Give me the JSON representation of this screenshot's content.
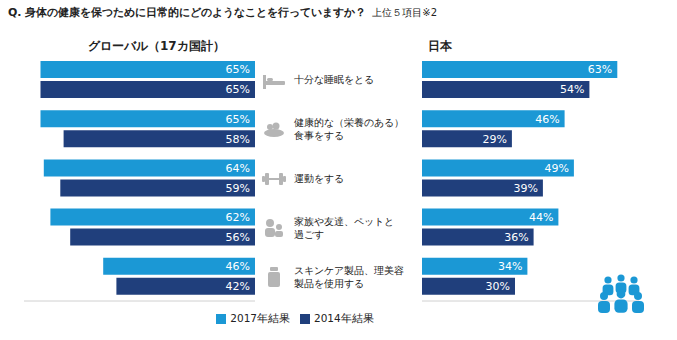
{
  "title": "Q. 身体の健康を保つために日常的にどのようなことを行っていますか？",
  "subtitle": "上位５項目※2",
  "chart_data": [
    {
      "type": "bar",
      "title": "グローバル（17カ国計）",
      "orientation": "horizontal",
      "categories": [
        "十分な睡眠をとる",
        "健康的な（栄養のある）\n食事をする",
        "運動をする",
        "家族や友達、ペットと\n過ごす",
        "スキンケア製品、理美容\n製品を使用する"
      ],
      "series": [
        {
          "name": "2017年結果",
          "color": "#1b98d5",
          "values": [
            65,
            65,
            64,
            62,
            46
          ],
          "value_labels": [
            "65%",
            "65%",
            "64%",
            "62%",
            "46%"
          ]
        },
        {
          "name": "2014年結果",
          "color": "#203f7c",
          "values": [
            65,
            58,
            59,
            56,
            42
          ],
          "value_labels": [
            "65%",
            "58%",
            "59%",
            "56%",
            "42%"
          ]
        }
      ],
      "xlim": [
        0,
        70
      ],
      "data_labels": true,
      "tick_labels": false,
      "legend": "bottom"
    },
    {
      "type": "bar",
      "title": "日本",
      "orientation": "horizontal",
      "categories": [
        "十分な睡眠をとる",
        "健康的な（栄養のある）\n食事をする",
        "運動をする",
        "家族や友達、ペットと\n過ごす",
        "スキンケア製品、理美容\n製品を使用する"
      ],
      "series": [
        {
          "name": "2017年結果",
          "color": "#1b98d5",
          "values": [
            63,
            46,
            49,
            44,
            34
          ],
          "value_labels": [
            "63%",
            "46%",
            "49%",
            "44%",
            "34%"
          ]
        },
        {
          "name": "2014年結果",
          "color": "#203f7c",
          "values": [
            54,
            29,
            39,
            36,
            30
          ],
          "value_labels": [
            "54%",
            "29%",
            "39%",
            "36%",
            "30%"
          ]
        }
      ],
      "xlim": [
        0,
        70
      ],
      "data_labels": true,
      "tick_labels": false
    }
  ]
}
